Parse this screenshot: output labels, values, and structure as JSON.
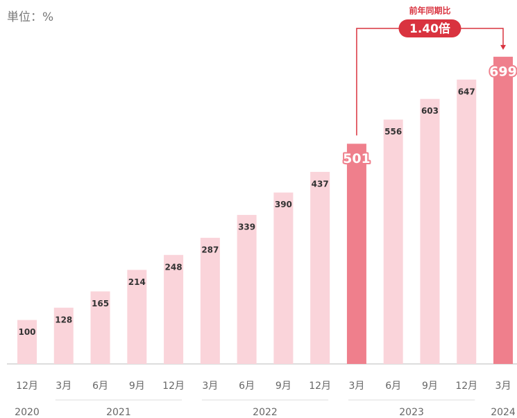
{
  "chart_data": {
    "type": "bar",
    "unit": "単位：%",
    "groups": [
      {
        "year": "2020",
        "categories": [
          "12月"
        ]
      },
      {
        "year": "2021",
        "categories": [
          "3月",
          "6月",
          "9月",
          "12月"
        ]
      },
      {
        "year": "2022",
        "categories": [
          "3月",
          "6月",
          "9月",
          "12月"
        ]
      },
      {
        "year": "2023",
        "categories": [
          "3月",
          "6月",
          "9月",
          "12月"
        ]
      },
      {
        "year": "2024",
        "categories": [
          "3月"
        ]
      }
    ],
    "values": [
      100,
      128,
      165,
      214,
      248,
      287,
      339,
      390,
      437,
      501,
      556,
      603,
      647,
      699
    ],
    "color": "#fad4da",
    "highlight_color": "#ef7f8c",
    "colors": [
      "#fad4da",
      "#fad4da",
      "#fad4da",
      "#fad4da",
      "#fad4da",
      "#fad4da",
      "#fad4da",
      "#fad4da",
      "#fad4da",
      "#ef7f8c",
      "#fad4da",
      "#fad4da",
      "#fad4da",
      "#ef7f8c"
    ],
    "annotation": {
      "title": "前年同期比",
      "label": "1.40倍",
      "color": "#d9333f"
    }
  }
}
